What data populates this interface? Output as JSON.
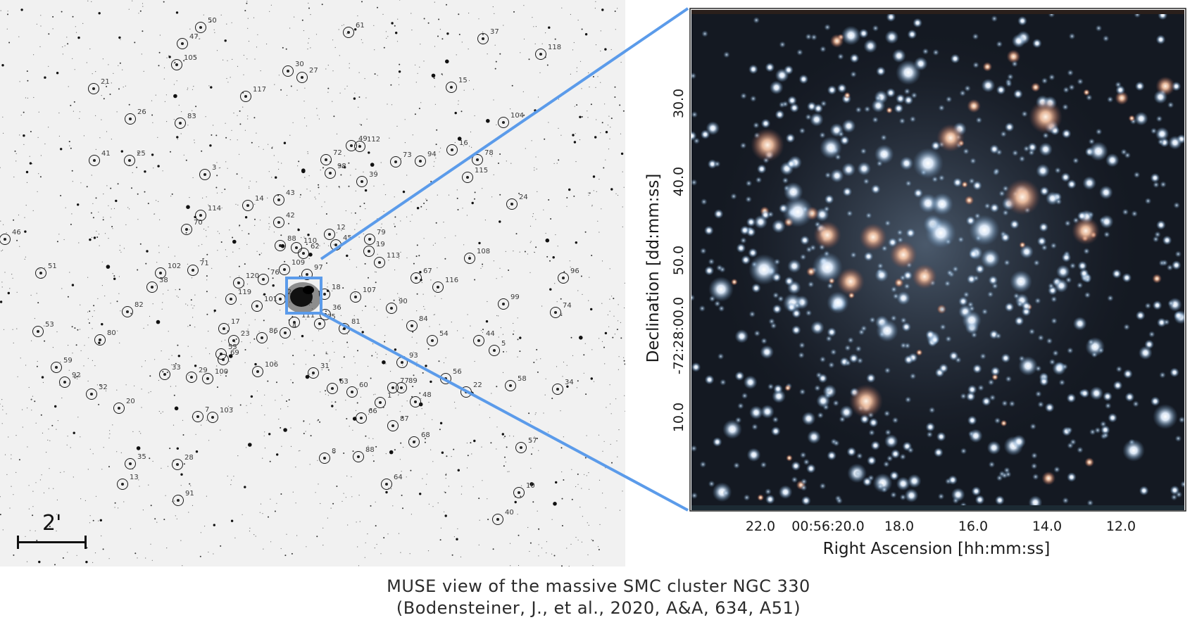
{
  "finder_chart": {
    "scale_label": "2'",
    "stars": [
      [
        "50",
        285,
        39
      ],
      [
        "61",
        495,
        46
      ],
      [
        "37",
        686,
        55
      ],
      [
        "47",
        259,
        62
      ],
      [
        "118",
        768,
        77
      ],
      [
        "105",
        251,
        92
      ],
      [
        "30",
        409,
        101
      ],
      [
        "27",
        429,
        110
      ],
      [
        "21",
        133,
        126
      ],
      [
        "15",
        641,
        124
      ],
      [
        "117",
        349,
        137
      ],
      [
        "26",
        185,
        169
      ],
      [
        "83",
        256,
        175
      ],
      [
        "104",
        715,
        174
      ],
      [
        "49",
        499,
        207
      ],
      [
        "112",
        511,
        208
      ],
      [
        "16",
        642,
        213
      ],
      [
        "78",
        678,
        227
      ],
      [
        "41",
        134,
        228
      ],
      [
        "25",
        184,
        228
      ],
      [
        "72",
        463,
        227
      ],
      [
        "73",
        562,
        230
      ],
      [
        "94",
        597,
        229
      ],
      [
        "3",
        291,
        248
      ],
      [
        "39",
        514,
        258
      ],
      [
        "115",
        664,
        252
      ],
      [
        "98",
        469,
        246
      ],
      [
        "43",
        396,
        284
      ],
      [
        "14",
        352,
        292
      ],
      [
        "24",
        727,
        290
      ],
      [
        "114",
        285,
        306
      ],
      [
        "12",
        468,
        333
      ],
      [
        "79",
        525,
        340
      ],
      [
        "42",
        396,
        316
      ],
      [
        "70",
        265,
        326
      ],
      [
        "88",
        398,
        349
      ],
      [
        "110",
        421,
        352
      ],
      [
        "62",
        431,
        360
      ],
      [
        "45",
        477,
        348
      ],
      [
        "19",
        524,
        357
      ],
      [
        "113",
        539,
        373
      ],
      [
        "108",
        667,
        367
      ],
      [
        "46",
        7,
        340
      ],
      [
        "51",
        58,
        388
      ],
      [
        "102",
        228,
        388
      ],
      [
        "71",
        274,
        384
      ],
      [
        "109",
        404,
        383
      ],
      [
        "97",
        436,
        390
      ],
      [
        "120",
        339,
        402
      ],
      [
        "76",
        374,
        397
      ],
      [
        "67",
        591,
        395
      ],
      [
        "116",
        622,
        408
      ],
      [
        "96",
        800,
        395
      ],
      [
        "38",
        216,
        408
      ],
      [
        "107",
        505,
        422
      ],
      [
        "18",
        461,
        418
      ],
      [
        "2",
        398,
        425
      ],
      [
        "119",
        328,
        425
      ],
      [
        "90",
        556,
        438
      ],
      [
        "99",
        715,
        432
      ],
      [
        "101",
        365,
        435
      ],
      [
        "74",
        789,
        444
      ],
      [
        "82",
        181,
        443
      ],
      [
        "53",
        54,
        471
      ],
      [
        "84",
        585,
        463
      ],
      [
        "17",
        318,
        467
      ],
      [
        "65",
        454,
        460
      ],
      [
        "36",
        462,
        447
      ],
      [
        "111",
        418,
        458
      ],
      [
        "4",
        405,
        473
      ],
      [
        "86",
        372,
        480
      ],
      [
        "81",
        489,
        467
      ],
      [
        "54",
        614,
        484
      ],
      [
        "44",
        680,
        484
      ],
      [
        "23",
        332,
        484
      ],
      [
        "5",
        702,
        498
      ],
      [
        "80",
        142,
        483
      ],
      [
        "55",
        314,
        503
      ],
      [
        "69",
        317,
        511
      ],
      [
        "93",
        571,
        515
      ],
      [
        "59",
        80,
        522
      ],
      [
        "92",
        92,
        543
      ],
      [
        "29",
        272,
        536
      ],
      [
        "33",
        234,
        532
      ],
      [
        "100",
        295,
        538
      ],
      [
        "106",
        366,
        528
      ],
      [
        "31",
        445,
        530
      ],
      [
        "77",
        558,
        551
      ],
      [
        "89",
        570,
        551
      ],
      [
        "56",
        633,
        538
      ],
      [
        "60",
        500,
        557
      ],
      [
        "58",
        725,
        548
      ],
      [
        "34",
        792,
        553
      ],
      [
        "32",
        130,
        560
      ],
      [
        "63",
        472,
        552
      ],
      [
        "22",
        662,
        557
      ],
      [
        "1",
        540,
        572
      ],
      [
        "48",
        590,
        571
      ],
      [
        "20",
        169,
        580
      ],
      [
        "7",
        281,
        592
      ],
      [
        "103",
        302,
        593
      ],
      [
        "66",
        513,
        594
      ],
      [
        "87",
        558,
        605
      ],
      [
        "68",
        588,
        628
      ],
      [
        "57",
        740,
        636
      ],
      [
        "35",
        185,
        659
      ],
      [
        "28",
        252,
        660
      ],
      [
        "8",
        461,
        651
      ],
      [
        "88",
        509,
        649
      ],
      [
        "64",
        549,
        688
      ],
      [
        "13",
        174,
        688
      ],
      [
        "10",
        737,
        700
      ],
      [
        "91",
        253,
        711
      ],
      [
        "40",
        707,
        738
      ]
    ]
  },
  "muse_panel": {
    "x_ticks": [
      "22.0",
      "00:56:20.0",
      "18.0",
      "16.0",
      "14.0",
      "12.0"
    ],
    "y_ticks": [
      "30.0",
      "40.0",
      "50.0",
      "-72:28:00.0",
      "10.0"
    ],
    "x_axis_title": "Right Ascension [hh:mm:ss]",
    "y_axis_title": "Declination [dd:mm:ss]"
  },
  "caption": {
    "line1": "MUSE view of the massive SMC cluster NGC 330",
    "line2": "(Bodensteiner, J., et al., 2020, A&A, 634, A51)"
  }
}
